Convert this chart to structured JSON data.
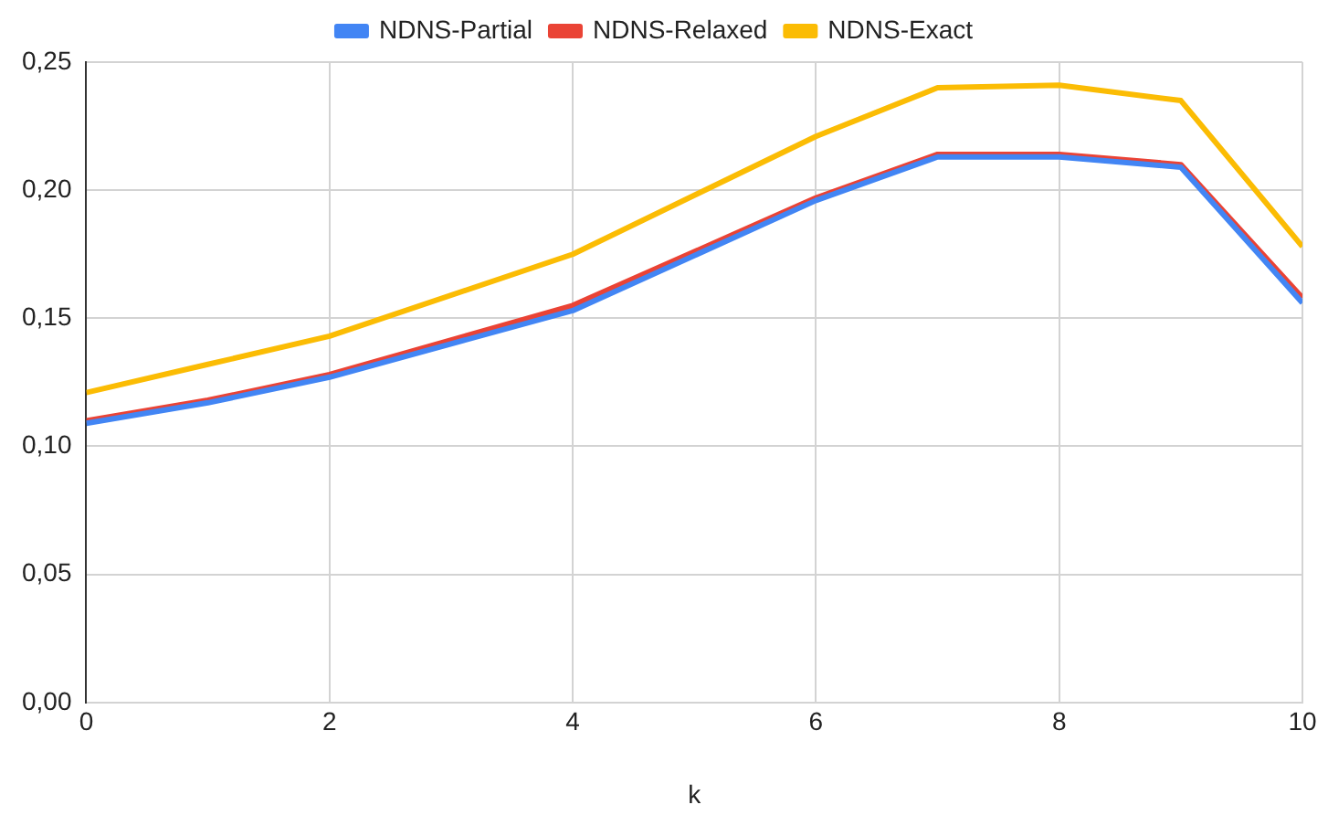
{
  "chart_data": {
    "type": "line",
    "xlabel": "k",
    "x": [
      0,
      1,
      2,
      4,
      6,
      7,
      8,
      9,
      10
    ],
    "series": [
      {
        "name": "NDNS-Partial",
        "color": "#4285f4",
        "values": [
          0.109,
          0.117,
          0.127,
          0.153,
          0.196,
          0.213,
          0.213,
          0.209,
          0.156
        ]
      },
      {
        "name": "NDNS-Relaxed",
        "color": "#ea4335",
        "values": [
          0.11,
          0.118,
          0.128,
          0.155,
          0.197,
          0.214,
          0.214,
          0.21,
          0.158
        ]
      },
      {
        "name": "NDNS-Exact",
        "color": "#fbbc04",
        "values": [
          0.121,
          0.132,
          0.143,
          0.175,
          0.221,
          0.24,
          0.241,
          0.235,
          0.178
        ]
      }
    ],
    "xlim": [
      0,
      10
    ],
    "xticks": [
      0,
      2,
      4,
      6,
      8,
      10
    ],
    "ylim": [
      0,
      0.25
    ],
    "yticks": [
      {
        "value": 0,
        "label": "0,00"
      },
      {
        "value": 0.05,
        "label": "0,05"
      },
      {
        "value": 0.1,
        "label": "0,10"
      },
      {
        "value": 0.15,
        "label": "0,15"
      },
      {
        "value": 0.2,
        "label": "0,20"
      },
      {
        "value": 0.25,
        "label": "0,25"
      }
    ],
    "grid": true,
    "legend": "top",
    "marker": "none",
    "line_style": "solid"
  }
}
